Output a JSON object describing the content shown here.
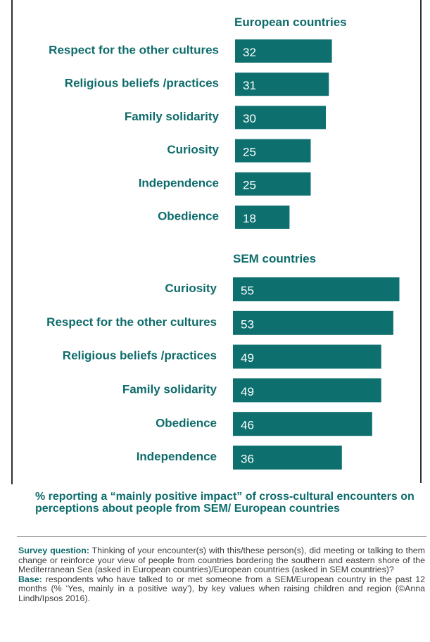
{
  "colors": {
    "bar": "#0e6f6f",
    "title": "#0d6b6b",
    "label": "#0f6b6b",
    "value_text": "#ffffff",
    "rule": "#2f2f2f",
    "caption": "#0d6b6b",
    "keyword": "#0d6b6b"
  },
  "chart_data": [
    {
      "type": "bar",
      "orientation": "horizontal",
      "title": "European countries",
      "categories": [
        "Respect for the other cultures",
        "Religious beliefs /practices",
        "Family solidarity",
        "Curiosity",
        "Independence",
        "Obedience"
      ],
      "values": [
        32,
        31,
        30,
        25,
        25,
        18
      ],
      "value_labels": [
        "32",
        "31",
        "30",
        "25",
        "25",
        "18"
      ]
    },
    {
      "type": "bar",
      "orientation": "horizontal",
      "title": "SEM countries",
      "categories": [
        "Curiosity",
        "Respect for the other cultures",
        "Religious beliefs /practices",
        "Family solidarity",
        "Obedience",
        "Independence"
      ],
      "values": [
        55,
        53,
        49,
        49,
        46,
        36
      ],
      "value_labels": [
        "55",
        "53",
        "49",
        "49",
        "46",
        "36"
      ]
    }
  ],
  "caption": "% reporting a “mainly positive impact” of cross-cultural encounters on perceptions about people from SEM/ European countries",
  "survey": {
    "question_label": "Survey question:",
    "question_text": " Thinking of your encounter(s) with this/these person(s), did meeting or talking to them change or reinforce your view of people from countries bordering the southern and eastern shore of the Mediterranean Sea (asked in European countries)/European countries (asked in SEM countries)?",
    "base_label": "Base:",
    "base_text": " respondents who have talked to or met someone from a SEM/European country in the past 12 months (% ‘Yes, mainly in a positive way’), by key values when raising children and region (©Anna Lindh/Ipsos 2016)."
  }
}
